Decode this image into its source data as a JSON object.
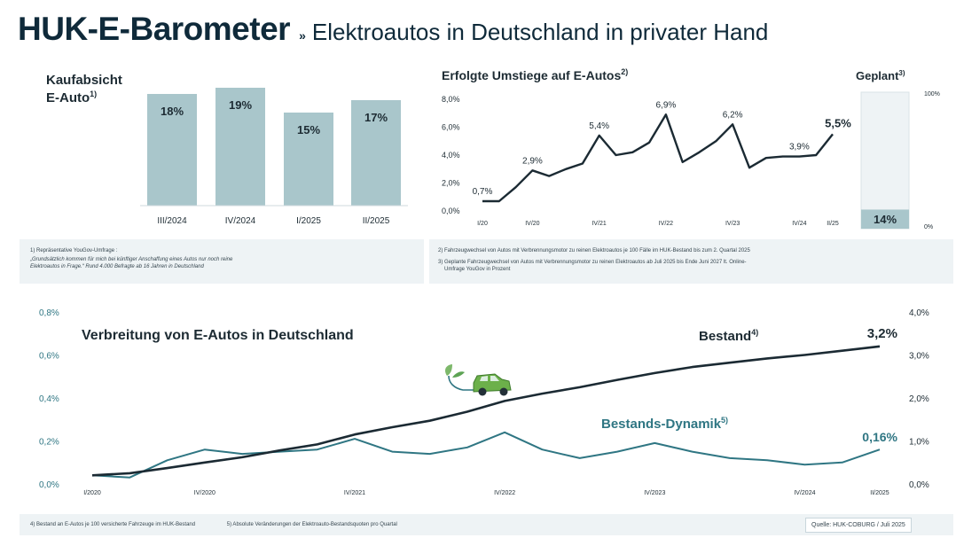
{
  "header": {
    "brand": "HUK-E-Barometer",
    "chevron": "»",
    "subtitle": "Elektroautos in Deutschland in privater Hand"
  },
  "colors": {
    "bar": "#a9c6cb",
    "dark_line": "#1b2a33",
    "teal_line": "#2f7683",
    "teal_text": "#2f7683",
    "panel_bg": "#eef3f5",
    "planned_bar": "#a9c6cb"
  },
  "chart_data": [
    {
      "type": "bar",
      "title": "Kaufabsicht E-Auto",
      "title_line1": "Kaufabsicht",
      "title_line2": "E-Auto",
      "footnote_marker": "1)",
      "categories": [
        "III/2024",
        "IV/2024",
        "I/2025",
        "II/2025"
      ],
      "values": [
        18,
        19,
        15,
        17
      ],
      "labels": [
        "18%",
        "19%",
        "15%",
        "17%"
      ],
      "unit": "%"
    },
    {
      "type": "line",
      "title": "Erfolgte Umstiege auf E-Autos",
      "footnote_marker": "2)",
      "yticks": [
        "8,0%",
        "6,0%",
        "4,0%",
        "2,0%",
        "0,0%"
      ],
      "ylim": [
        0,
        8
      ],
      "xticks": [
        "I/20",
        "IV/20",
        "IV/21",
        "IV/22",
        "IV/23",
        "IV/24",
        "II/25"
      ],
      "x": [
        "I/20",
        "II/20",
        "III/20",
        "IV/20",
        "I/21",
        "II/21",
        "III/21",
        "IV/21",
        "I/22",
        "II/22",
        "III/22",
        "IV/22",
        "I/23",
        "II/23",
        "III/23",
        "IV/23",
        "I/24",
        "II/24",
        "III/24",
        "IV/24",
        "I/25",
        "II/25"
      ],
      "values": [
        0.7,
        0.7,
        1.7,
        2.9,
        2.5,
        3.0,
        3.4,
        5.4,
        4.0,
        4.2,
        4.9,
        6.9,
        3.5,
        4.2,
        5.0,
        6.2,
        3.1,
        3.8,
        3.9,
        3.9,
        4.0,
        5.5
      ],
      "point_labels": [
        {
          "index": 0,
          "text": "0,7%"
        },
        {
          "index": 3,
          "text": "2,9%"
        },
        {
          "index": 7,
          "text": "5,4%"
        },
        {
          "index": 11,
          "text": "6,9%"
        },
        {
          "index": 15,
          "text": "6,2%"
        },
        {
          "index": 19,
          "text": "3,9%"
        },
        {
          "index": 21,
          "text": "5,5%"
        }
      ]
    },
    {
      "type": "bar",
      "title": "Geplant",
      "footnote_marker": "3)",
      "value": 14,
      "label": "14%",
      "ylim": [
        0,
        100
      ],
      "ytick_top": "100%",
      "ytick_bottom": "0%"
    },
    {
      "type": "line",
      "title": "Verbreitung von E-Autos in Deutschland",
      "left_axis": {
        "ticks": [
          "0,8%",
          "0,6%",
          "0,4%",
          "0,2%",
          "0,0%"
        ],
        "ylim": [
          0,
          0.8
        ]
      },
      "right_axis": {
        "ticks": [
          "4,0%",
          "3,0%",
          "2,0%",
          "1,0%",
          "0,0%"
        ],
        "ylim": [
          0,
          4
        ]
      },
      "xticks": [
        "I/2020",
        "IV/2020",
        "IV/2021",
        "IV/2022",
        "IV/2023",
        "IV/2024",
        "II/2025"
      ],
      "x": [
        "I/20",
        "II/20",
        "III/20",
        "IV/20",
        "I/21",
        "II/21",
        "III/21",
        "IV/21",
        "I/22",
        "II/22",
        "III/22",
        "IV/22",
        "I/23",
        "II/23",
        "III/23",
        "IV/23",
        "I/24",
        "II/24",
        "III/24",
        "IV/24",
        "I/25",
        "II/25"
      ],
      "series": [
        {
          "name": "Bestand",
          "footnote_marker": "4)",
          "axis": "right",
          "end_label": "3,2%",
          "values": [
            0.2,
            0.25,
            0.37,
            0.5,
            0.62,
            0.78,
            0.92,
            1.15,
            1.32,
            1.47,
            1.68,
            1.93,
            2.1,
            2.25,
            2.42,
            2.58,
            2.72,
            2.82,
            2.92,
            3.0,
            3.1,
            3.2
          ]
        },
        {
          "name": "Bestands-Dynamik",
          "footnote_marker": "5)",
          "axis": "left",
          "end_label": "0,16%",
          "values": [
            0.04,
            0.03,
            0.11,
            0.16,
            0.14,
            0.15,
            0.16,
            0.21,
            0.15,
            0.14,
            0.17,
            0.24,
            0.16,
            0.12,
            0.15,
            0.19,
            0.15,
            0.12,
            0.11,
            0.09,
            0.1,
            0.16
          ]
        }
      ]
    }
  ],
  "notes": {
    "n1_line1": "1) Repräsentative YouGov-Umfrage :",
    "n1_line2": "„Grundsätzlich kommen für mich bei künftiger Anschaffung eines Autos nur noch reine",
    "n1_line3": "Elektroautos in Frage.“ Rund 4.000 Befragte ab 16 Jahren in Deutschland",
    "n2": "2) Fahrzeugwechsel von Autos mit Verbrennungsmotor zu reinen Elektroautos je 100 Fälle im HUK-Bestand bis zum 2. Quartal 2025",
    "n3_line1": "3) Geplante Fahrzeugwechsel von Autos mit Verbrennungsmotor zu reinen Elektroautos ab Juli 2025 bis Ende Juni 2027 lt. Online-",
    "n3_line2": "Umfrage YouGov in Prozent",
    "n4": "4) Bestand an E-Autos je 100 versicherte Fahrzeuge im HUK-Bestand",
    "n5": "5) Absolute Veränderungen der Elektroauto-Bestandsquoten pro Quartal",
    "source": "Quelle: HUK-COBURG / Juli 2025"
  },
  "icon": "electric-car-icon"
}
